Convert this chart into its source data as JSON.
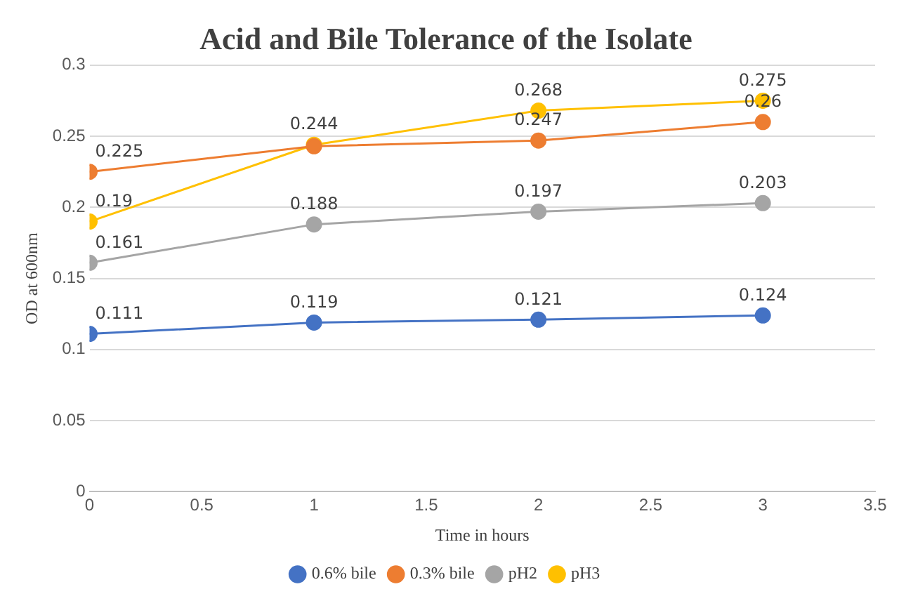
{
  "chart_data": {
    "type": "line",
    "title": "Acid and Bile Tolerance of the Isolate",
    "xlabel": "Time in hours",
    "ylabel": "OD at 600nm",
    "x": [
      0,
      1,
      2,
      3
    ],
    "xlim": [
      0,
      3.5
    ],
    "xticks": [
      0,
      0.5,
      1,
      1.5,
      2,
      2.5,
      3,
      3.5
    ],
    "ylim": [
      0,
      0.3
    ],
    "yticks": [
      0,
      0.05,
      0.1,
      0.15,
      0.2,
      0.25,
      0.3
    ],
    "grid": "y",
    "legend": "bottom",
    "marker": "circle",
    "line_style": "solid",
    "series": [
      {
        "name": "0.6% bile",
        "color": "#4472c4",
        "values": [
          0.111,
          0.119,
          0.121,
          0.124
        ],
        "value_labels": [
          "0.111",
          "0.119",
          "0.121",
          "0.124"
        ]
      },
      {
        "name": "0.3% bile",
        "color": "#ed7d31",
        "values": [
          0.225,
          0.243,
          0.247,
          0.26
        ],
        "value_labels": [
          "0.225",
          null,
          "0.247",
          "0.26"
        ]
      },
      {
        "name": "pH2",
        "color": "#a5a5a5",
        "values": [
          0.161,
          0.188,
          0.197,
          0.203
        ],
        "value_labels": [
          "0.161",
          "0.188",
          "0.197",
          "0.203"
        ]
      },
      {
        "name": "pH3",
        "color": "#ffc000",
        "values": [
          0.19,
          0.244,
          0.268,
          0.275
        ],
        "value_labels": [
          "0.19",
          "0.244",
          "0.268",
          "0.275"
        ]
      }
    ]
  }
}
